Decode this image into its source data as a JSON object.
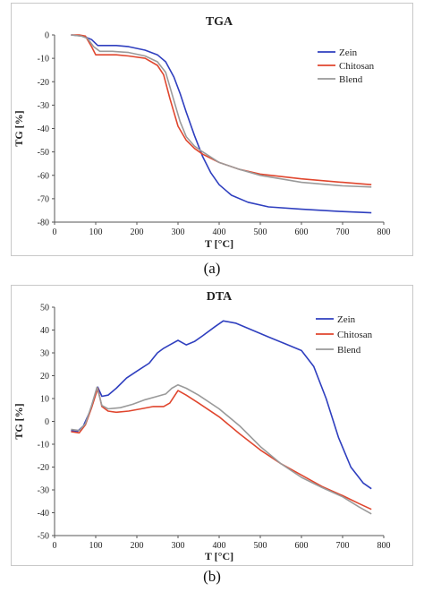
{
  "captions": {
    "a": "(a)",
    "b": "(b)"
  },
  "chart_data": [
    {
      "type": "line",
      "title": "TGA",
      "xlabel": "T [°C]",
      "ylabel": "TG [%]",
      "xlim": [
        0,
        800
      ],
      "ylim": [
        -80,
        0
      ],
      "xticks": [
        0,
        100,
        200,
        300,
        400,
        500,
        600,
        700,
        800
      ],
      "yticks": [
        0,
        -10,
        -20,
        -30,
        -40,
        -50,
        -60,
        -70,
        -80
      ],
      "grid": false,
      "legend": "top-right",
      "series": [
        {
          "name": "Zein",
          "color": "#2f3fbf",
          "x": [
            40,
            70,
            90,
            105,
            120,
            150,
            180,
            220,
            250,
            270,
            290,
            305,
            320,
            340,
            360,
            380,
            400,
            430,
            470,
            520,
            600,
            700,
            770
          ],
          "y": [
            0,
            -0.5,
            -2,
            -4.5,
            -4.5,
            -4.5,
            -5,
            -6.5,
            -8.5,
            -11.5,
            -18,
            -25,
            -33,
            -43,
            -52,
            -59,
            -64,
            -68.5,
            -71.5,
            -73.5,
            -74.5,
            -75.5,
            -76
          ]
        },
        {
          "name": "Chitosan",
          "color": "#e0462e",
          "x": [
            40,
            60,
            75,
            90,
            100,
            120,
            150,
            180,
            220,
            250,
            265,
            280,
            290,
            300,
            320,
            340,
            360,
            400,
            450,
            500,
            600,
            700,
            770
          ],
          "y": [
            0,
            0,
            -0.5,
            -5,
            -8.5,
            -8.5,
            -8.5,
            -9,
            -10,
            -13,
            -17,
            -27,
            -33,
            -39,
            -45,
            -48.5,
            -51,
            -54.5,
            -57.5,
            -59.5,
            -61.5,
            -63,
            -64
          ]
        },
        {
          "name": "Blend",
          "color": "#9a9a9a",
          "x": [
            40,
            65,
            80,
            95,
            110,
            140,
            180,
            220,
            250,
            270,
            290,
            305,
            320,
            340,
            360,
            400,
            450,
            500,
            600,
            700,
            770
          ],
          "y": [
            0,
            -0.5,
            -1.5,
            -5,
            -7,
            -7,
            -7.5,
            -9,
            -11.5,
            -16,
            -28,
            -37,
            -43.5,
            -47.5,
            -50,
            -54.5,
            -57.5,
            -60,
            -63,
            -64.5,
            -65
          ]
        }
      ]
    },
    {
      "type": "line",
      "title": "DTA",
      "xlabel": "T [°C]",
      "ylabel": "TG [%]",
      "xlim": [
        0,
        800
      ],
      "ylim": [
        -50,
        50
      ],
      "xticks": [
        0,
        100,
        200,
        300,
        400,
        500,
        600,
        700,
        800
      ],
      "yticks": [
        50,
        40,
        30,
        20,
        10,
        0,
        -10,
        -20,
        -30,
        -40,
        -50
      ],
      "grid": false,
      "legend": "top-right",
      "series": [
        {
          "name": "Zein",
          "color": "#2f3fbf",
          "x": [
            40,
            55,
            70,
            85,
            105,
            115,
            130,
            150,
            175,
            200,
            230,
            250,
            265,
            280,
            300,
            320,
            340,
            360,
            390,
            410,
            440,
            480,
            520,
            560,
            600,
            630,
            660,
            690,
            720,
            750,
            770
          ],
          "y": [
            -4,
            -4.5,
            -2,
            4,
            15,
            11,
            11.5,
            14.5,
            19,
            22,
            25.5,
            30,
            32,
            33.5,
            35.5,
            33.5,
            35,
            37.5,
            41.5,
            44,
            43,
            40,
            37,
            34,
            31,
            24,
            10,
            -7,
            -20,
            -27,
            -29.5
          ]
        },
        {
          "name": "Chitosan",
          "color": "#e0462e",
          "x": [
            40,
            60,
            75,
            90,
            105,
            115,
            130,
            150,
            180,
            210,
            240,
            265,
            280,
            300,
            320,
            350,
            400,
            450,
            500,
            550,
            600,
            650,
            700,
            740,
            770
          ],
          "y": [
            -4.5,
            -5,
            -1.5,
            6,
            14.5,
            6.5,
            4.5,
            4,
            4.5,
            5.5,
            6.5,
            6.5,
            8,
            13.5,
            11.5,
            8,
            2,
            -5.5,
            -12.5,
            -18.5,
            -23.5,
            -28.5,
            -32.5,
            -36,
            -38.5
          ]
        },
        {
          "name": "Blend",
          "color": "#9a9a9a",
          "x": [
            40,
            60,
            75,
            90,
            103,
            115,
            130,
            160,
            190,
            220,
            250,
            270,
            285,
            300,
            320,
            350,
            400,
            450,
            500,
            550,
            600,
            650,
            700,
            740,
            770
          ],
          "y": [
            -3.5,
            -4,
            -1,
            7,
            15,
            7,
            5.5,
            6,
            7.5,
            9.5,
            11,
            12,
            14.5,
            16,
            14.5,
            11.5,
            5.5,
            -2,
            -11,
            -18.5,
            -24.5,
            -29,
            -33,
            -37.5,
            -40.5
          ]
        }
      ]
    }
  ]
}
